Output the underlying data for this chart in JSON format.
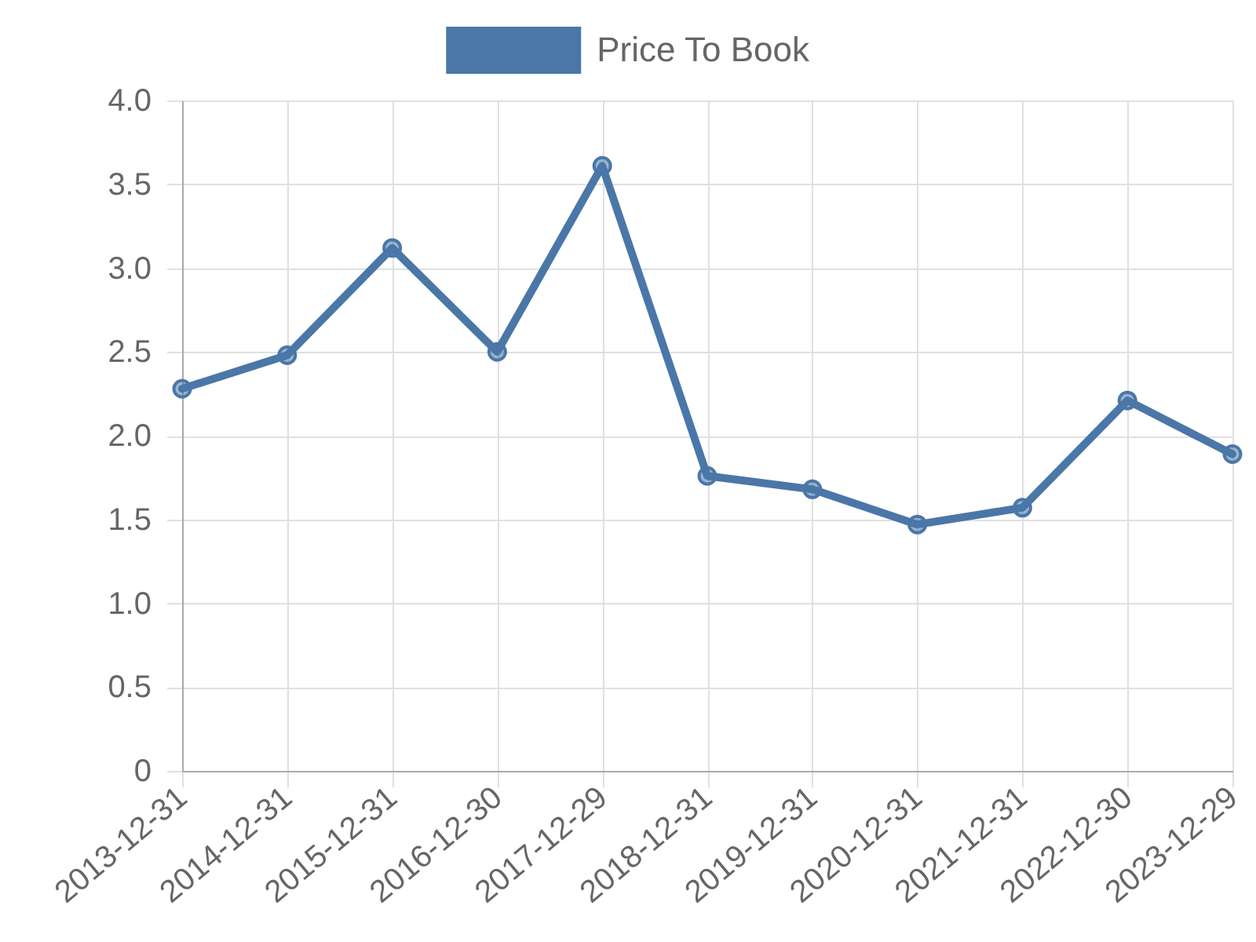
{
  "chart_data": {
    "type": "line",
    "categories": [
      "2013-12-31",
      "2014-12-31",
      "2015-12-31",
      "2016-12-30",
      "2017-12-29",
      "2018-12-31",
      "2019-12-31",
      "2020-12-31",
      "2021-12-31",
      "2022-12-30",
      "2023-12-29"
    ],
    "series": [
      {
        "name": "Price To Book",
        "color": "#4a77a8",
        "values": [
          2.28,
          2.48,
          3.12,
          2.5,
          3.61,
          1.76,
          1.68,
          1.47,
          1.57,
          2.21,
          1.89
        ]
      }
    ],
    "ylim": [
      0,
      4
    ],
    "yticks": [
      0,
      0.5,
      {
        "value": 1,
        "label": "1.0"
      },
      1.5,
      {
        "value": 2,
        "label": "2.0"
      },
      2.5,
      {
        "value": 3,
        "label": "3.0"
      },
      3.5,
      {
        "value": 4,
        "label": "4.0"
      }
    ],
    "grid": true,
    "legend": "top",
    "marker": "circle"
  }
}
